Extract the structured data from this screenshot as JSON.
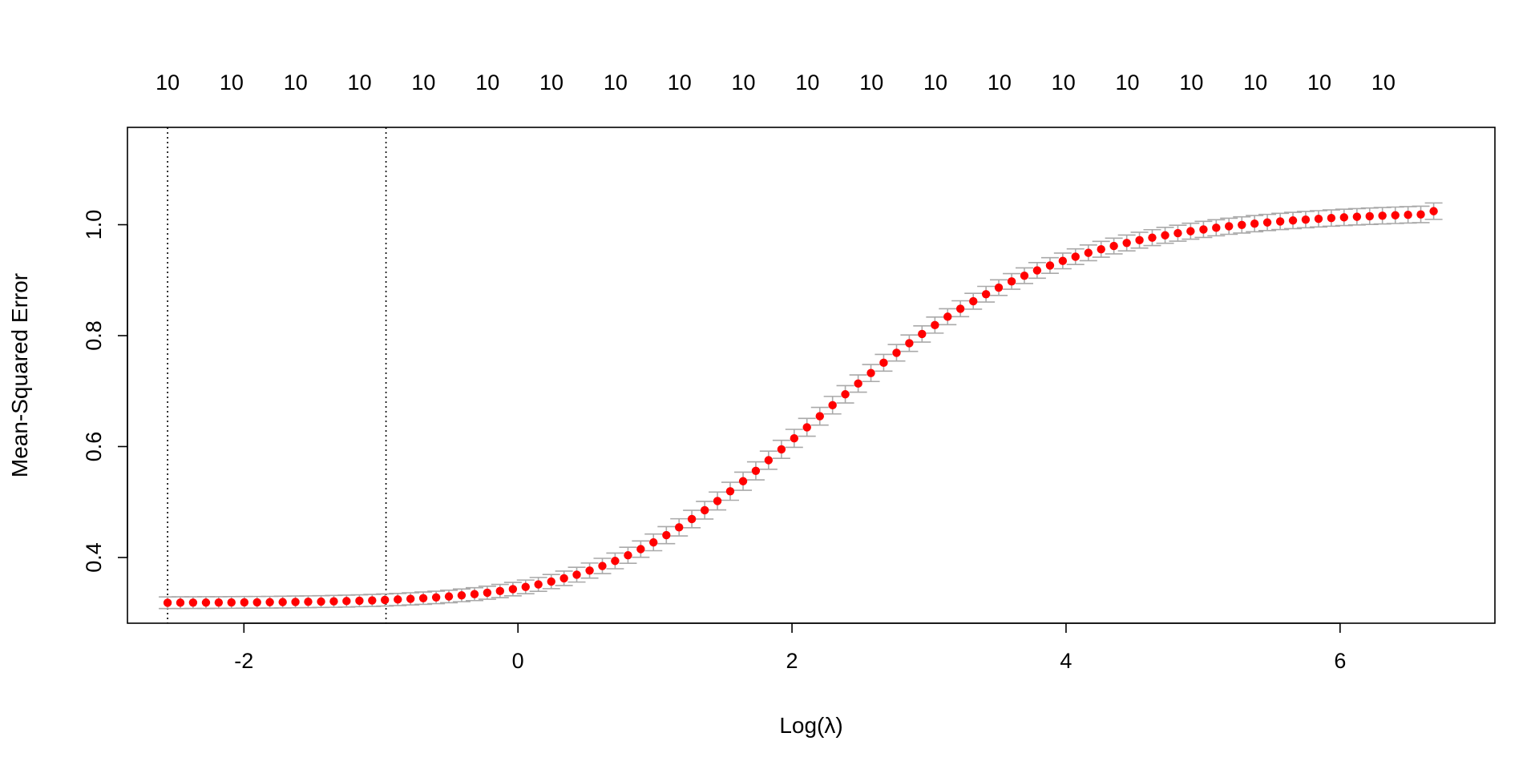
{
  "chart_data": {
    "type": "scatter",
    "xlabel": "Log(λ)",
    "ylabel": "Mean-Squared Error",
    "xlim": [
      -2.85,
      7.13
    ],
    "ylim": [
      0.2815,
      1.1755
    ],
    "x_ticks": [
      -2,
      0,
      2,
      4,
      6
    ],
    "x_tick_labels": [
      "-2",
      "0",
      "2",
      "4",
      "6"
    ],
    "y_ticks": [
      0.4,
      0.6,
      0.8,
      1.0
    ],
    "y_tick_labels": [
      "0.4",
      "0.6",
      "0.8",
      "1.0"
    ],
    "top_labels": [
      "10",
      "10",
      "10",
      "10",
      "10",
      "10",
      "10",
      "10",
      "10",
      "10",
      "10",
      "10",
      "10",
      "10",
      "10",
      "10",
      "10",
      "10",
      "10",
      "10"
    ],
    "top_label_x": [
      -2.557,
      -2.09,
      -1.623,
      -1.156,
      -0.689,
      -0.222,
      0.245,
      0.712,
      1.179,
      1.646,
      2.113,
      2.58,
      3.047,
      3.514,
      3.981,
      4.448,
      4.915,
      5.382,
      5.849,
      6.316
    ],
    "vlines": [
      -2.557,
      -0.963
    ],
    "point_color": "#ff0000",
    "errorbar_color": "#a9a9a9",
    "x": [
      -2.557,
      -2.464,
      -2.371,
      -2.277,
      -2.184,
      -2.091,
      -1.997,
      -1.904,
      -1.811,
      -1.717,
      -1.624,
      -1.531,
      -1.437,
      -1.344,
      -1.251,
      -1.157,
      -1.064,
      -0.971,
      -0.877,
      -0.784,
      -0.691,
      -0.597,
      -0.504,
      -0.411,
      -0.317,
      -0.224,
      -0.131,
      -0.037,
      0.056,
      0.149,
      0.243,
      0.336,
      0.429,
      0.523,
      0.616,
      0.709,
      0.803,
      0.896,
      0.989,
      1.083,
      1.176,
      1.269,
      1.363,
      1.456,
      1.549,
      1.643,
      1.736,
      1.829,
      1.923,
      2.016,
      2.109,
      2.203,
      2.296,
      2.389,
      2.483,
      2.576,
      2.669,
      2.763,
      2.856,
      2.949,
      3.043,
      3.136,
      3.229,
      3.323,
      3.416,
      3.509,
      3.603,
      3.696,
      3.789,
      3.883,
      3.976,
      4.069,
      4.163,
      4.256,
      4.349,
      4.443,
      4.536,
      4.629,
      4.723,
      4.816,
      4.909,
      5.003,
      5.096,
      5.189,
      5.283,
      5.376,
      5.469,
      5.563,
      5.656,
      5.749,
      5.843,
      5.936,
      6.029,
      6.123,
      6.216,
      6.309,
      6.403,
      6.496,
      6.589,
      6.683
    ],
    "y": [
      0.3184,
      0.3185,
      0.3186,
      0.3187,
      0.3188,
      0.3189,
      0.3191,
      0.3192,
      0.3194,
      0.3196,
      0.3199,
      0.3202,
      0.3205,
      0.3209,
      0.3214,
      0.322,
      0.3226,
      0.3234,
      0.3243,
      0.3254,
      0.3266,
      0.328,
      0.3297,
      0.3317,
      0.3339,
      0.3365,
      0.3395,
      0.343,
      0.347,
      0.3515,
      0.3566,
      0.3625,
      0.369,
      0.3764,
      0.3847,
      0.3938,
      0.404,
      0.4151,
      0.4272,
      0.4403,
      0.4543,
      0.4693,
      0.4852,
      0.5019,
      0.5194,
      0.5375,
      0.5562,
      0.5754,
      0.595,
      0.6148,
      0.6347,
      0.6547,
      0.6746,
      0.6942,
      0.7136,
      0.7326,
      0.7511,
      0.7691,
      0.7864,
      0.803,
      0.819,
      0.8341,
      0.8485,
      0.862,
      0.8747,
      0.8866,
      0.8977,
      0.908,
      0.9176,
      0.9265,
      0.9347,
      0.9423,
      0.9493,
      0.9557,
      0.9616,
      0.9671,
      0.9721,
      0.9767,
      0.9809,
      0.9847,
      0.9883,
      0.9915,
      0.9945,
      0.9972,
      0.9996,
      1.0019,
      1.004,
      1.0059,
      1.0076,
      1.0092,
      1.0106,
      1.012,
      1.0132,
      1.0143,
      1.0153,
      1.0162,
      1.017,
      1.0178,
      1.0185,
      1.0244
    ],
    "se": [
      0.0105,
      0.0105,
      0.0105,
      0.0105,
      0.0105,
      0.0105,
      0.0105,
      0.0105,
      0.0105,
      0.0105,
      0.0106,
      0.0106,
      0.0106,
      0.0107,
      0.0107,
      0.0107,
      0.0108,
      0.0109,
      0.0109,
      0.011,
      0.0111,
      0.0112,
      0.0113,
      0.0114,
      0.0116,
      0.0117,
      0.0119,
      0.0121,
      0.0123,
      0.0125,
      0.0128,
      0.013,
      0.0133,
      0.0136,
      0.0138,
      0.0141,
      0.0144,
      0.0147,
      0.015,
      0.0153,
      0.0155,
      0.0157,
      0.0159,
      0.0161,
      0.0162,
      0.0163,
      0.0163,
      0.0163,
      0.0163,
      0.0162,
      0.0161,
      0.016,
      0.0158,
      0.0156,
      0.0155,
      0.0153,
      0.0151,
      0.0149,
      0.0148,
      0.0146,
      0.0145,
      0.0144,
      0.0143,
      0.0142,
      0.0141,
      0.0141,
      0.0141,
      0.0141,
      0.0141,
      0.0141,
      0.0141,
      0.0141,
      0.0142,
      0.0142,
      0.0142,
      0.0143,
      0.0143,
      0.0143,
      0.0144,
      0.0144,
      0.0144,
      0.0145,
      0.0145,
      0.0145,
      0.0146,
      0.0146,
      0.0146,
      0.0146,
      0.0147,
      0.0147,
      0.0147,
      0.0147,
      0.0147,
      0.0147,
      0.0148,
      0.0148,
      0.0148,
      0.0148,
      0.0148,
      0.0148
    ]
  }
}
